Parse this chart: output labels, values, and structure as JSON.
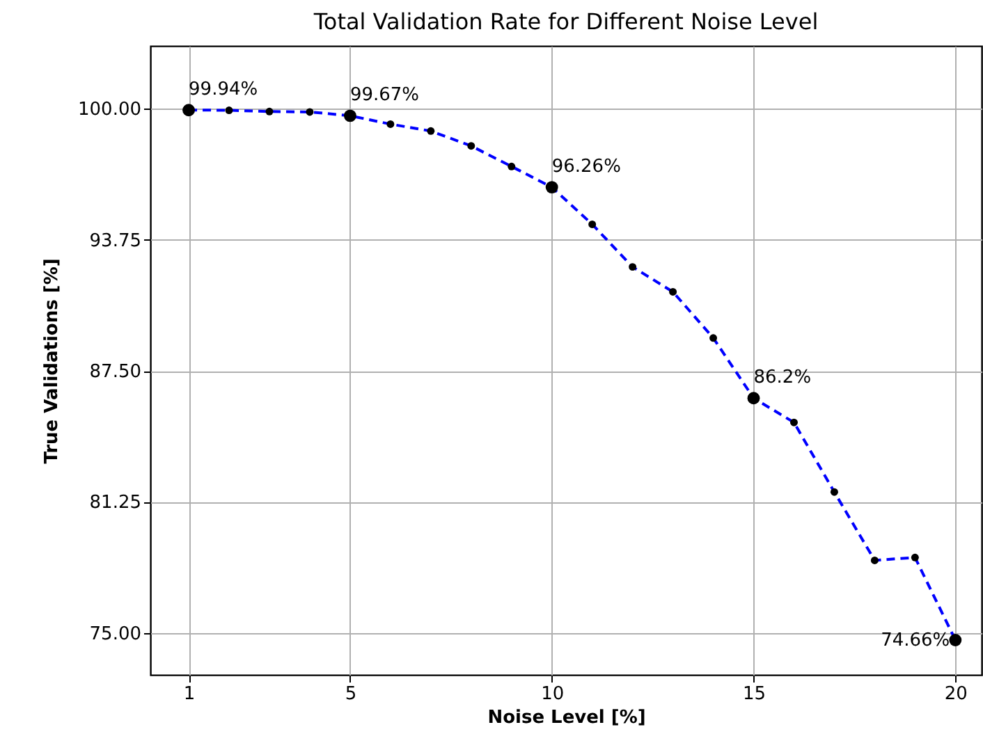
{
  "chart_data": {
    "type": "line",
    "title": "Total Validation Rate for Different Noise Level",
    "xlabel": "Noise Level [%]",
    "ylabel": "True Validations [%]",
    "x": [
      1,
      2,
      3,
      4,
      5,
      6,
      7,
      8,
      9,
      10,
      11,
      12,
      13,
      14,
      15,
      16,
      17,
      18,
      19,
      20
    ],
    "series": [
      {
        "color": "#0000ff",
        "values": [
          99.94,
          99.93,
          99.87,
          99.85,
          99.67,
          99.27,
          98.94,
          98.23,
          97.25,
          96.26,
          94.49,
          92.46,
          91.27,
          89.07,
          86.2,
          85.04,
          81.72,
          78.46,
          78.6,
          74.66
        ]
      }
    ],
    "xlim": [
      0.05,
      20.65
    ],
    "ylim": [
      73,
      103
    ],
    "xticks": [
      1,
      5,
      10,
      15,
      20
    ],
    "yticks": [
      {
        "value": 75,
        "label": "75.00"
      },
      {
        "value": 81.25,
        "label": "81.25"
      },
      {
        "value": 87.5,
        "label": "87.50"
      },
      {
        "value": 93.75,
        "label": "93.75"
      },
      {
        "value": 100,
        "label": "100.00"
      }
    ],
    "annotations": [
      {
        "text": "99.94%",
        "x": 1,
        "y": 99.94
      },
      {
        "text": "99.67%",
        "x": 5,
        "y": 99.67
      },
      {
        "text": "96.26%",
        "x": 10,
        "y": 96.26
      },
      {
        "text": "86.2%",
        "x": 15,
        "y": 86.2
      },
      {
        "text": "74.66%",
        "x": 20,
        "y": 74.66
      }
    ],
    "grid": true,
    "marker": "circle",
    "line_style": "dashed"
  }
}
